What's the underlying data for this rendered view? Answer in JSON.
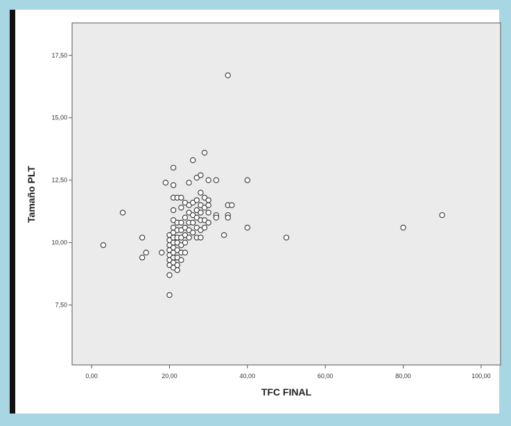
{
  "colors": {
    "background": "#a9d6e3",
    "frame": "#ffffff",
    "plot_area": "#ebebeb",
    "marker_stroke": "#333333"
  },
  "chart_data": {
    "type": "scatter",
    "title": "",
    "xlabel": "TFC FINAL",
    "ylabel": "Tamaño PLT",
    "xlim": [
      -5,
      105
    ],
    "ylim": [
      5.1,
      18.8
    ],
    "x_ticks": [
      0,
      20,
      40,
      60,
      80,
      100
    ],
    "x_tick_labels": [
      "0,00",
      "20,00",
      "40,00",
      "60,00",
      "80,00",
      "100,00"
    ],
    "y_ticks": [
      7.5,
      10,
      12.5,
      15,
      17.5
    ],
    "y_tick_labels": [
      "7,50",
      "10,00",
      "12,50",
      "15,00",
      "17,50"
    ],
    "grid": false,
    "marker": "open-circle",
    "series": [
      {
        "points": [
          [
            3,
            9.9
          ],
          [
            8,
            11.2
          ],
          [
            13,
            10.2
          ],
          [
            13,
            9.4
          ],
          [
            14,
            9.6
          ],
          [
            18,
            9.6
          ],
          [
            19,
            12.4
          ],
          [
            20,
            10.3
          ],
          [
            20,
            10.1
          ],
          [
            20,
            9.9
          ],
          [
            20,
            9.7
          ],
          [
            20,
            9.5
          ],
          [
            20,
            9.3
          ],
          [
            20,
            9.1
          ],
          [
            20,
            8.7
          ],
          [
            20,
            7.9
          ],
          [
            21,
            13.0
          ],
          [
            21,
            12.3
          ],
          [
            21,
            11.8
          ],
          [
            21,
            11.3
          ],
          [
            21,
            10.9
          ],
          [
            21,
            10.6
          ],
          [
            21,
            10.4
          ],
          [
            21,
            10.2
          ],
          [
            21,
            10.0
          ],
          [
            21,
            9.8
          ],
          [
            21,
            9.6
          ],
          [
            21,
            9.4
          ],
          [
            21,
            9.2
          ],
          [
            21,
            9.0
          ],
          [
            22,
            11.8
          ],
          [
            22,
            10.8
          ],
          [
            22,
            10.5
          ],
          [
            22,
            10.2
          ],
          [
            22,
            10.0
          ],
          [
            22,
            9.7
          ],
          [
            22,
            9.4
          ],
          [
            22,
            9.1
          ],
          [
            22,
            8.9
          ],
          [
            23,
            11.8
          ],
          [
            23,
            11.4
          ],
          [
            23,
            10.8
          ],
          [
            23,
            10.5
          ],
          [
            23,
            10.2
          ],
          [
            23,
            9.9
          ],
          [
            23,
            9.6
          ],
          [
            23,
            9.3
          ],
          [
            24,
            11.6
          ],
          [
            24,
            11.0
          ],
          [
            24,
            10.6
          ],
          [
            24,
            10.3
          ],
          [
            24,
            10.0
          ],
          [
            24,
            9.6
          ],
          [
            25,
            12.4
          ],
          [
            25,
            11.5
          ],
          [
            25,
            11.2
          ],
          [
            25,
            10.8
          ],
          [
            25,
            10.5
          ],
          [
            25,
            10.2
          ],
          [
            26,
            13.3
          ],
          [
            26,
            11.6
          ],
          [
            26,
            11.1
          ],
          [
            26,
            10.8
          ],
          [
            26,
            10.4
          ],
          [
            27,
            12.6
          ],
          [
            27,
            11.7
          ],
          [
            27,
            11.3
          ],
          [
            27,
            11.0
          ],
          [
            27,
            10.6
          ],
          [
            27,
            10.2
          ],
          [
            28,
            12.7
          ],
          [
            28,
            12.0
          ],
          [
            28,
            11.5
          ],
          [
            28,
            11.2
          ],
          [
            28,
            10.9
          ],
          [
            28,
            10.5
          ],
          [
            28,
            10.2
          ],
          [
            29,
            13.6
          ],
          [
            29,
            11.8
          ],
          [
            29,
            11.4
          ],
          [
            29,
            10.9
          ],
          [
            29,
            10.6
          ],
          [
            30,
            12.5
          ],
          [
            30,
            11.7
          ],
          [
            30,
            11.5
          ],
          [
            30,
            11.2
          ],
          [
            30,
            10.8
          ],
          [
            32,
            12.5
          ],
          [
            32,
            11.1
          ],
          [
            32,
            11.0
          ],
          [
            34,
            10.3
          ],
          [
            35,
            16.7
          ],
          [
            35,
            11.5
          ],
          [
            35,
            11.1
          ],
          [
            35,
            11.0
          ],
          [
            36,
            11.5
          ],
          [
            40,
            12.5
          ],
          [
            40,
            10.6
          ],
          [
            50,
            10.2
          ],
          [
            80,
            10.6
          ],
          [
            90,
            11.1
          ]
        ]
      }
    ]
  }
}
